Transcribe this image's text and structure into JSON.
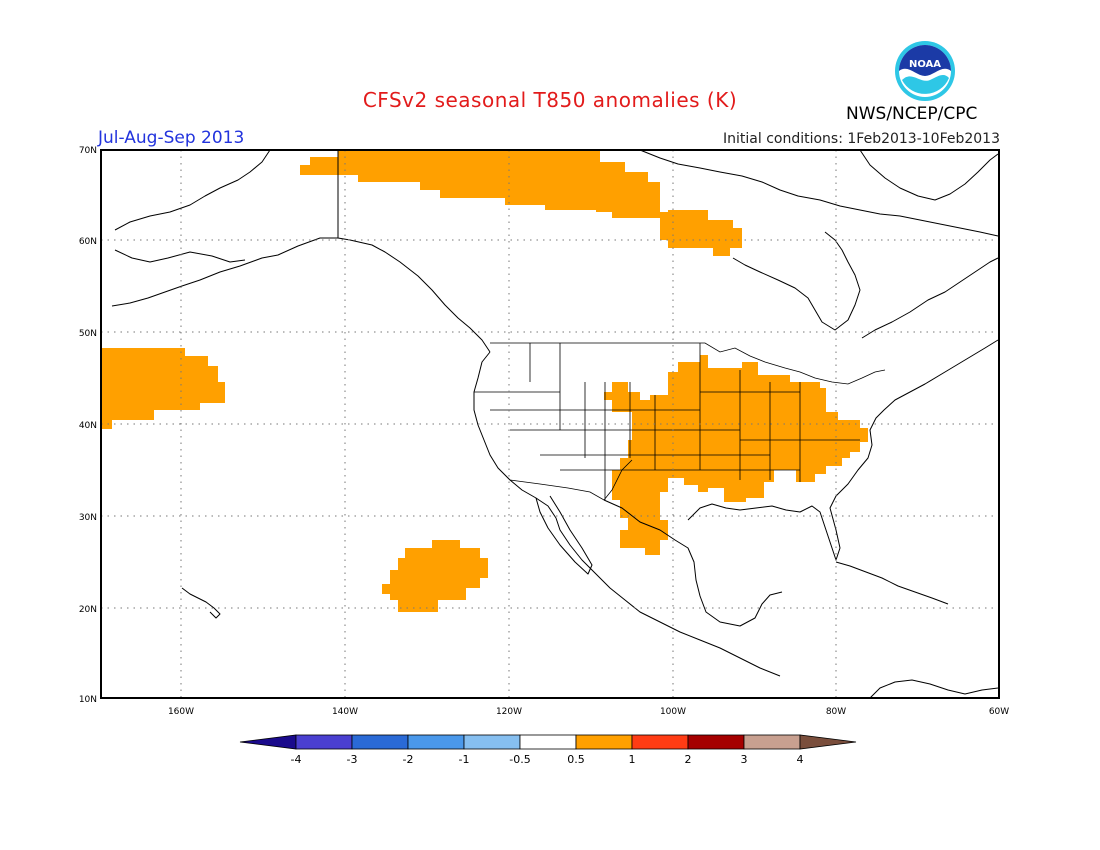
{
  "header": {
    "title": "CFSv2 seasonal T850 anomalies (K)",
    "period": "Jul-Aug-Sep 2013",
    "initial_conditions": "Initial conditions:  1Feb2013-10Feb2013",
    "agency": "NWS/NCEP/CPC",
    "logo_text": "NOAA"
  },
  "axes": {
    "lat_labels": [
      "70N",
      "60N",
      "50N",
      "40N",
      "30N",
      "20N",
      "10N"
    ],
    "lon_labels": [
      "160W",
      "140W",
      "120W",
      "100W",
      "80W",
      "60W"
    ]
  },
  "colorbar": {
    "labels": [
      "-4",
      "-3",
      "-2",
      "-1",
      "-0.5",
      "0.5",
      "1",
      "2",
      "3",
      "4"
    ],
    "colors": [
      "#1a0a8c",
      "#4a3fd0",
      "#2a6ad6",
      "#4a98ea",
      "#86bff0",
      "#ffffff",
      "#ffa000",
      "#ff3c14",
      "#a50000",
      "#c8a090",
      "#7a4e3c"
    ]
  },
  "colors": {
    "anomaly_fill": "#ffa000",
    "title": "#e21b1b",
    "period": "#2233dd"
  }
}
